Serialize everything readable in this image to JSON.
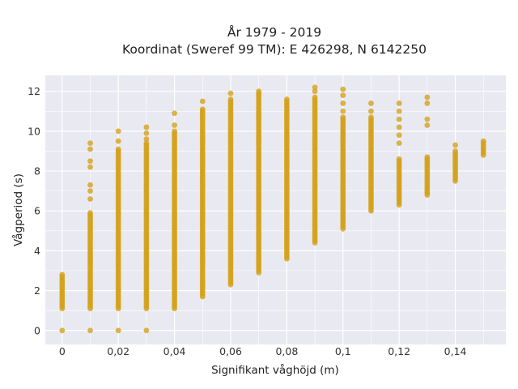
{
  "chart_data": {
    "type": "scatter",
    "title_line1": "År 1979 - 2019",
    "title_line2": "Koordinat (Sweref 99 TM): E 426298, N 6142250",
    "xlabel": "Signifikant våghöjd (m)",
    "ylabel": "Vågperiod (s)",
    "xlim": [
      -0.006,
      0.158
    ],
    "ylim": [
      -0.7,
      12.8
    ],
    "grid": true,
    "legend": "none",
    "colors": {
      "marker": "#D4A017",
      "plot_bg": "#E9E9F1",
      "grid": "#FFFFFF"
    },
    "x_ticks": [
      {
        "value": 0,
        "label": "0"
      },
      {
        "value": 0.02,
        "label": "0,02"
      },
      {
        "value": 0.04,
        "label": "0,04"
      },
      {
        "value": 0.06,
        "label": "0,06"
      },
      {
        "value": 0.08,
        "label": "0,08"
      },
      {
        "value": 0.1,
        "label": "0,1"
      },
      {
        "value": 0.12,
        "label": "0,12"
      },
      {
        "value": 0.14,
        "label": "0,14"
      }
    ],
    "y_ticks": [
      {
        "value": 0,
        "label": "0"
      },
      {
        "value": 2,
        "label": "2"
      },
      {
        "value": 4,
        "label": "4"
      },
      {
        "value": 6,
        "label": "6"
      },
      {
        "value": 8,
        "label": "8"
      },
      {
        "value": 10,
        "label": "10"
      },
      {
        "value": 12,
        "label": "12"
      }
    ],
    "columns": [
      {
        "x": 0.0,
        "y_min": 1.1,
        "y_max": 2.8,
        "extra_y": [
          0.0
        ]
      },
      {
        "x": 0.01,
        "y_min": 1.1,
        "y_max": 5.9,
        "extra_y": [
          0.0,
          6.6,
          7.0,
          7.3,
          8.2,
          8.5,
          9.1,
          9.4
        ]
      },
      {
        "x": 0.02,
        "y_min": 1.1,
        "y_max": 9.1,
        "extra_y": [
          0.0,
          9.5,
          10.0
        ]
      },
      {
        "x": 0.03,
        "y_min": 1.1,
        "y_max": 9.4,
        "extra_y": [
          0.0,
          9.6,
          9.9,
          10.2
        ]
      },
      {
        "x": 0.04,
        "y_min": 1.1,
        "y_max": 10.0,
        "extra_y": [
          10.3,
          10.9
        ]
      },
      {
        "x": 0.05,
        "y_min": 1.7,
        "y_max": 11.1,
        "extra_y": [
          11.5
        ]
      },
      {
        "x": 0.06,
        "y_min": 2.3,
        "y_max": 11.6,
        "extra_y": [
          11.9
        ]
      },
      {
        "x": 0.07,
        "y_min": 2.9,
        "y_max": 12.0,
        "extra_y": []
      },
      {
        "x": 0.08,
        "y_min": 3.6,
        "y_max": 11.6,
        "extra_y": []
      },
      {
        "x": 0.09,
        "y_min": 4.4,
        "y_max": 11.7,
        "extra_y": [
          12.0,
          12.2
        ]
      },
      {
        "x": 0.1,
        "y_min": 5.1,
        "y_max": 10.7,
        "extra_y": [
          11.0,
          11.4,
          11.8,
          12.1
        ]
      },
      {
        "x": 0.11,
        "y_min": 6.0,
        "y_max": 10.7,
        "extra_y": [
          11.0,
          11.4
        ]
      },
      {
        "x": 0.12,
        "y_min": 6.3,
        "y_max": 8.6,
        "extra_y": [
          9.4,
          9.8,
          10.2,
          10.6,
          11.0,
          11.4
        ]
      },
      {
        "x": 0.13,
        "y_min": 6.8,
        "y_max": 8.7,
        "extra_y": [
          10.3,
          10.6,
          11.4,
          11.7
        ]
      },
      {
        "x": 0.14,
        "y_min": 7.5,
        "y_max": 9.0,
        "extra_y": [
          9.3
        ]
      },
      {
        "x": 0.15,
        "y_min": 8.8,
        "y_max": 9.5,
        "extra_y": []
      }
    ]
  }
}
